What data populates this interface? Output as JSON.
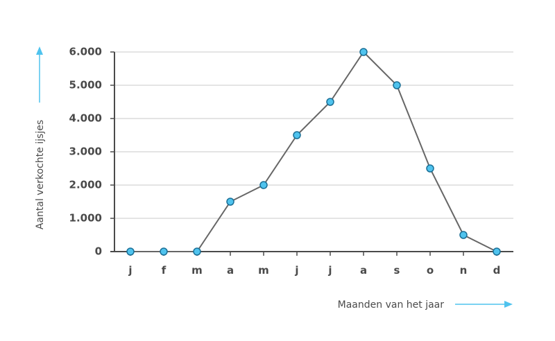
{
  "chart_data": {
    "type": "line",
    "categories": [
      "j",
      "f",
      "m",
      "a",
      "m",
      "j",
      "j",
      "a",
      "s",
      "o",
      "n",
      "d"
    ],
    "values": [
      0,
      0,
      0,
      1500,
      2000,
      3500,
      4500,
      6000,
      5000,
      2500,
      500,
      0
    ],
    "ylim": [
      0,
      6000
    ],
    "yticks": [
      0,
      1000,
      2000,
      3000,
      4000,
      5000,
      6000
    ],
    "ytick_labels": [
      "0",
      "1.000",
      "2.000",
      "3.000",
      "4.000",
      "5.000",
      "6.000"
    ],
    "xlabel": "Maanden van het jaar",
    "ylabel": "Aantal verkochte ijsjes",
    "grid": true,
    "legend": "none"
  },
  "colors": {
    "line": "#666666",
    "marker_fill": "#4fc3ee",
    "marker_stroke": "#1a6f96",
    "arrow": "#4fc3ee",
    "grid": "#c8c8c8",
    "text": "#4a4a4a"
  }
}
